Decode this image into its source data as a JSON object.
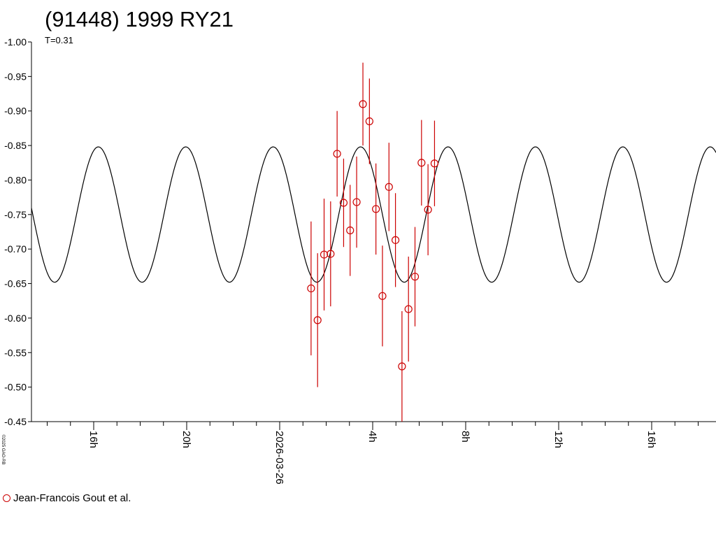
{
  "chart_data": {
    "type": "scatter",
    "title": "(91448) 1999 RY21",
    "subtitle": "T=0.31",
    "y_axis": {
      "range": [
        -1.0,
        -0.45
      ],
      "inverted": true,
      "ticks": [
        -1.0,
        -0.95,
        -0.9,
        -0.85,
        -0.8,
        -0.75,
        -0.7,
        -0.65,
        -0.6,
        -0.55,
        -0.5,
        -0.45
      ],
      "tick_labels": [
        "-1.00",
        "-0.95",
        "-0.90",
        "-0.85",
        "-0.80",
        "-0.75",
        "-0.70",
        "-0.65",
        "-0.60",
        "-0.55",
        "-0.50",
        "-0.45"
      ]
    },
    "x_axis": {
      "unit": "hours relative to 2026-03-26 00:00",
      "range": [
        -10,
        26
      ],
      "labeled_ticks": [
        {
          "x": -8,
          "label": "16h"
        },
        {
          "x": -4,
          "label": "20h"
        },
        {
          "x": 0,
          "label": "2026-03-26"
        },
        {
          "x": 4,
          "label": "4h"
        },
        {
          "x": 8,
          "label": "8h"
        },
        {
          "x": 12,
          "label": "12h"
        },
        {
          "x": 16,
          "label": "16h"
        }
      ],
      "minor_tick_step": 1
    },
    "model_curve": {
      "color": "#000000",
      "period_hours": 3.76,
      "mean": -0.75,
      "amplitude": 0.098,
      "peak_x": 3.48
    },
    "series": [
      {
        "name": "Jean-Francois Gout et al.",
        "color": "#cc0000",
        "marker": "open-circle",
        "points": [
          {
            "x": 1.35,
            "y": -0.643,
            "err": 0.097
          },
          {
            "x": 1.63,
            "y": -0.597,
            "err": 0.097
          },
          {
            "x": 1.91,
            "y": -0.692,
            "err": 0.081
          },
          {
            "x": 2.19,
            "y": -0.693,
            "err": 0.076
          },
          {
            "x": 2.47,
            "y": -0.838,
            "err": 0.062
          },
          {
            "x": 2.75,
            "y": -0.767,
            "err": 0.064
          },
          {
            "x": 3.03,
            "y": -0.727,
            "err": 0.066
          },
          {
            "x": 3.31,
            "y": -0.768,
            "err": 0.066
          },
          {
            "x": 3.58,
            "y": -0.91,
            "err": 0.06
          },
          {
            "x": 3.86,
            "y": -0.885,
            "err": 0.062
          },
          {
            "x": 4.14,
            "y": -0.758,
            "err": 0.066
          },
          {
            "x": 4.42,
            "y": -0.632,
            "err": 0.073
          },
          {
            "x": 4.7,
            "y": -0.79,
            "err": 0.064
          },
          {
            "x": 4.98,
            "y": -0.713,
            "err": 0.068
          },
          {
            "x": 5.26,
            "y": -0.53,
            "err": 0.08
          },
          {
            "x": 5.54,
            "y": -0.613,
            "err": 0.076
          },
          {
            "x": 5.82,
            "y": -0.66,
            "err": 0.072
          },
          {
            "x": 6.1,
            "y": -0.825,
            "err": 0.062
          },
          {
            "x": 6.38,
            "y": -0.757,
            "err": 0.066
          },
          {
            "x": 6.66,
            "y": -0.824,
            "err": 0.062
          }
        ]
      }
    ],
    "legend_position": "bottom-left",
    "grid": false,
    "copyright": "©2025 GAO-RB"
  }
}
